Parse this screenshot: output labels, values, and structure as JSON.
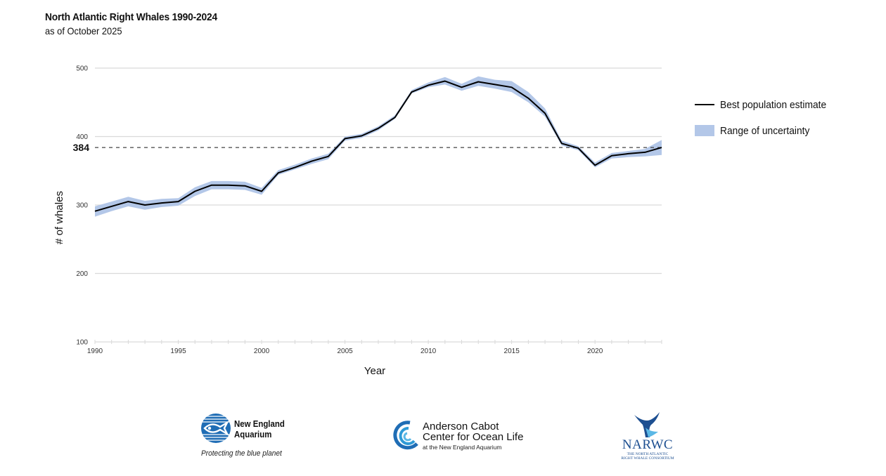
{
  "header": {
    "title": "North Atlantic Right Whales 1990-2024",
    "subtitle": "as of October 2025"
  },
  "legend": {
    "line_label": "Best population estimate",
    "band_label": "Range of uncertainty"
  },
  "colors": {
    "line": "#000000",
    "band": "#b3c7e8",
    "grid": "#d9d9d9",
    "reference": "#444444"
  },
  "chart_data": {
    "type": "line",
    "title": "North Atlantic Right Whales 1990-2024",
    "subtitle": "as of October 2025",
    "xlabel": "Year",
    "ylabel": "# of whales",
    "xlim": [
      1990,
      2024
    ],
    "ylim": [
      100,
      500
    ],
    "x_ticks": [
      1990,
      1995,
      2000,
      2005,
      2010,
      2015,
      2020
    ],
    "y_ticks": [
      100,
      200,
      300,
      400,
      500
    ],
    "grid": "horizontal",
    "legend_position": "right",
    "reference_line": {
      "value": 384,
      "label": "384",
      "style": "dashed"
    },
    "x": [
      1990,
      1991,
      1992,
      1993,
      1994,
      1995,
      1996,
      1997,
      1998,
      1999,
      2000,
      2001,
      2002,
      2003,
      2004,
      2005,
      2006,
      2007,
      2008,
      2009,
      2010,
      2011,
      2012,
      2013,
      2014,
      2015,
      2016,
      2017,
      2018,
      2019,
      2020,
      2021,
      2022,
      2023,
      2024
    ],
    "series": [
      {
        "name": "Best population estimate",
        "values": [
          291,
          298,
          305,
          300,
          303,
          305,
          320,
          329,
          329,
          328,
          320,
          347,
          355,
          364,
          371,
          397,
          401,
          412,
          428,
          465,
          475,
          481,
          472,
          480,
          476,
          472,
          456,
          434,
          390,
          383,
          358,
          372,
          375,
          377,
          384
        ]
      },
      {
        "name": "Range of uncertainty (low)",
        "values": [
          283,
          291,
          298,
          293,
          297,
          299,
          313,
          323,
          323,
          322,
          315,
          344,
          352,
          360,
          367,
          394,
          398,
          409,
          426,
          463,
          472,
          476,
          467,
          474,
          470,
          465,
          450,
          429,
          387,
          380,
          355,
          368,
          370,
          371,
          373
        ]
      },
      {
        "name": "Range of uncertainty (high)",
        "values": [
          298,
          305,
          312,
          306,
          309,
          310,
          326,
          335,
          335,
          334,
          325,
          351,
          359,
          368,
          375,
          400,
          404,
          415,
          431,
          468,
          479,
          487,
          477,
          488,
          483,
          481,
          465,
          441,
          394,
          386,
          362,
          376,
          379,
          382,
          395
        ]
      }
    ]
  },
  "footer": {
    "nea": {
      "name_line1": "New England",
      "name_line2": "Aquarium",
      "tagline": "Protecting the blue planet"
    },
    "acc": {
      "line1": "Anderson Cabot",
      "line2": "Center for Ocean Life",
      "sub": "at the New England Aquarium"
    },
    "narwc": {
      "name": "NARWC",
      "sub_line1": "THE NORTH ATLANTIC",
      "sub_line2": "RIGHT WHALE CONSORTIUM"
    }
  }
}
